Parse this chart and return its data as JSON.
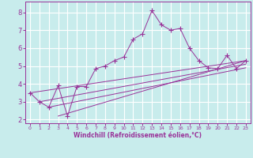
{
  "xlabel": "Windchill (Refroidissement éolien,°C)",
  "bg_color": "#c8ecec",
  "grid_color": "#ffffff",
  "line_color": "#993399",
  "x_main": [
    0,
    1,
    2,
    3,
    4,
    5,
    6,
    7,
    8,
    9,
    10,
    11,
    12,
    13,
    14,
    15,
    16,
    17,
    18,
    19,
    20,
    21,
    22,
    23
  ],
  "y_main": [
    3.5,
    3.0,
    2.7,
    3.9,
    2.2,
    3.85,
    3.85,
    4.85,
    5.0,
    5.3,
    5.5,
    6.5,
    6.8,
    8.1,
    7.3,
    7.0,
    7.1,
    6.0,
    5.3,
    4.9,
    4.85,
    5.6,
    4.85,
    5.3
  ],
  "trend_lines": [
    {
      "x": [
        0,
        23
      ],
      "y": [
        3.5,
        5.3
      ]
    },
    {
      "x": [
        1,
        23
      ],
      "y": [
        3.0,
        5.1
      ]
    },
    {
      "x": [
        2,
        23
      ],
      "y": [
        2.7,
        4.9
      ]
    },
    {
      "x": [
        3,
        23
      ],
      "y": [
        2.2,
        5.3
      ]
    }
  ],
  "ylim": [
    1.8,
    8.6
  ],
  "xlim": [
    -0.5,
    23.5
  ],
  "yticks": [
    2,
    3,
    4,
    5,
    6,
    7,
    8
  ],
  "xticks": [
    0,
    1,
    2,
    3,
    4,
    5,
    6,
    7,
    8,
    9,
    10,
    11,
    12,
    13,
    14,
    15,
    16,
    17,
    18,
    19,
    20,
    21,
    22,
    23
  ],
  "xlabel_fontsize": 5.5,
  "ytick_fontsize": 6.0,
  "xtick_fontsize": 4.5,
  "linewidth": 0.7,
  "marker_size": 2.5
}
